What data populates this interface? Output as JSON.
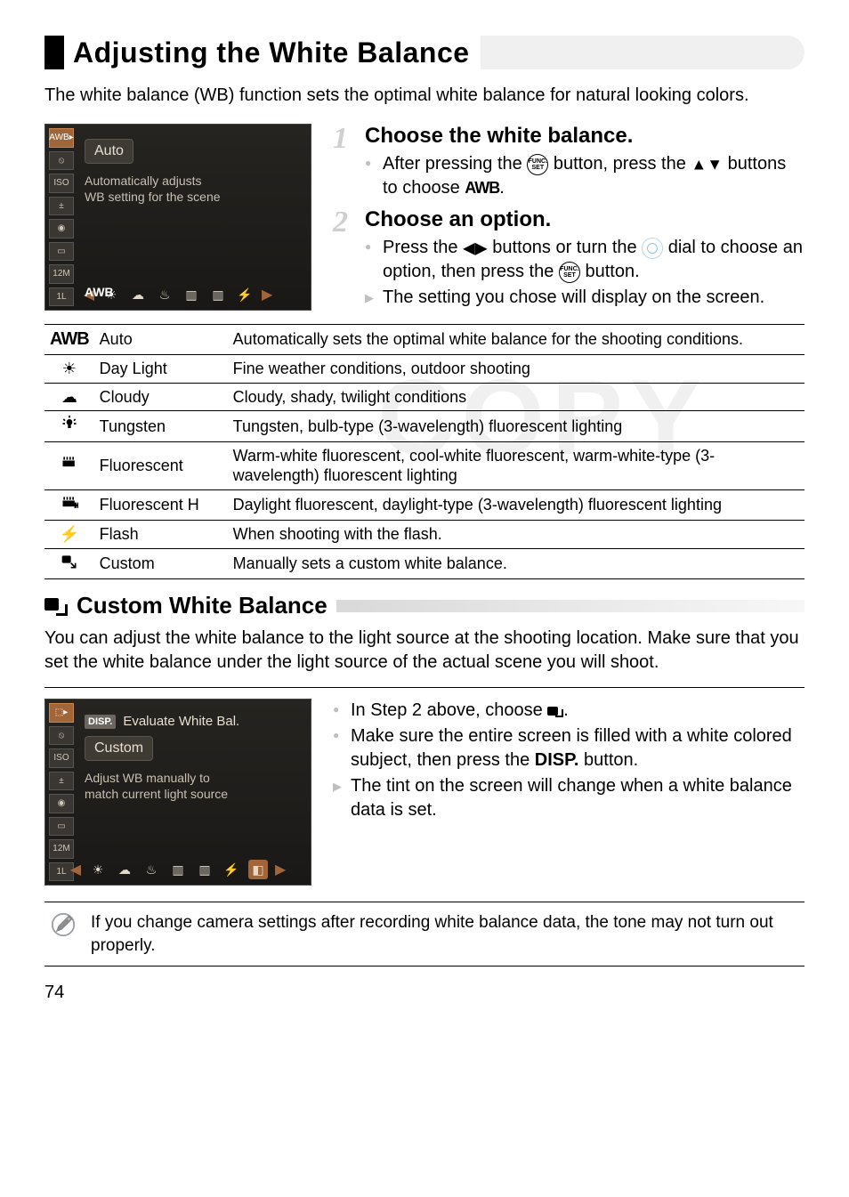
{
  "page_number": "74",
  "h1": "Adjusting the White Balance",
  "intro": "The white balance (WB) function sets the optimal white balance for natural looking colors.",
  "watermark": "COPY",
  "lcd1": {
    "top_label": "AWB",
    "pill": "Auto",
    "desc_line1": "Automatically adjusts",
    "desc_line2": "WB setting for the scene",
    "bottom_awb": "AWB",
    "left_icons": [
      "AWB▸",
      "⦸",
      "ISO",
      "±",
      "◉",
      "▭",
      "12M",
      "1L"
    ]
  },
  "lcd2": {
    "disp_label": "DISP.",
    "disp_text": "Evaluate White Bal.",
    "pill": "Custom",
    "desc_line1": "Adjust WB manually to",
    "desc_line2": "match current light source",
    "left_icons": [
      "⬚▸",
      "⦸",
      "ISO",
      "±",
      "◉",
      "▭",
      "12M",
      "1L"
    ]
  },
  "steps": [
    {
      "num": "1",
      "title": "Choose the white balance.",
      "items": [
        {
          "type": "dot",
          "html": "After pressing the {FUNC} button, press the {UD} buttons to choose {AWB}."
        }
      ]
    },
    {
      "num": "2",
      "title": "Choose an option.",
      "items": [
        {
          "type": "dot",
          "html": "Press the {LR} buttons or turn the {DIAL} dial to choose an option, then press the {FUNC} button."
        },
        {
          "type": "arrow",
          "html": "The setting you chose will display on the screen."
        }
      ]
    }
  ],
  "table": [
    {
      "icon": "AWB",
      "icon_kind": "awb",
      "name": "Auto",
      "desc": "Automatically sets the optimal white balance for the shooting conditions."
    },
    {
      "icon": "☀",
      "icon_kind": "glyph",
      "name": "Day Light",
      "desc": "Fine weather conditions, outdoor shooting"
    },
    {
      "icon": "☁",
      "icon_kind": "glyph",
      "name": "Cloudy",
      "desc": "Cloudy, shady, twilight conditions"
    },
    {
      "icon": "tungsten",
      "icon_kind": "svg",
      "name": "Tungsten",
      "desc": "Tungsten, bulb-type (3-wavelength) fluorescent lighting"
    },
    {
      "icon": "fluor",
      "icon_kind": "svg",
      "name": "Fluorescent",
      "desc": "Warm-white fluorescent, cool-white fluorescent, warm-white-type (3-wavelength) fluorescent lighting"
    },
    {
      "icon": "fluorh",
      "icon_kind": "svg",
      "name": "Fluorescent H",
      "desc": "Daylight fluorescent, daylight-type (3-wavelength) fluorescent lighting"
    },
    {
      "icon": "⚡",
      "icon_kind": "glyph",
      "name": "Flash",
      "desc": "When shooting with the flash."
    },
    {
      "icon": "custom",
      "icon_kind": "svg",
      "name": "Custom",
      "desc": "Manually sets a custom white balance."
    }
  ],
  "h2": "Custom White Balance",
  "para2": "You can adjust the white balance to the light source at the shooting location. Make sure that you set the white balance under the light source of the actual scene you will shoot.",
  "steps2": [
    {
      "type": "dot",
      "html": "In Step 2 above, choose {CUSTOM}."
    },
    {
      "type": "dot",
      "html": "Make sure the entire screen is filled with a white colored subject, then press the {DISP} button."
    },
    {
      "type": "arrow",
      "html": "The tint on the screen will change when a white balance data is set."
    }
  ],
  "note": "If you change camera settings after recording white balance data, the tone may not turn out properly.",
  "colors": {
    "stepnum": "#d0cfcf",
    "bullet_grey": "#bfbfbf",
    "lcd_bg_top": "#262421",
    "lcd_bg_bot": "#1a1816",
    "lcd_orange": "#a0663a"
  },
  "svg_icons": {
    "tungsten": "<svg viewBox='0 0 24 24' width='20' height='20'><g fill='#000'><circle cx='12' cy='10' r='4'/><rect x='10' y='13' width='4' height='5'/><path d='M12 1v3M4 6l2 2M20 6l-2 2M3 12h3M18 12h3' stroke='#000' stroke-width='2'/></g></svg>",
    "fluor": "<svg viewBox='0 0 24 24' width='20' height='20'><g stroke='#000' stroke-width='2' fill='none'><path d='M5 4v4M9 4v4M13 4v4M17 4v4'/><rect x='4' y='10' width='14' height='6' fill='#000'/></g></svg>",
    "fluorh": "<svg viewBox='0 0 24 24' width='20' height='20'><g stroke='#000' stroke-width='2' fill='none'><path d='M5 4v4M9 4v4M13 4v4M17 4v4'/><rect x='4' y='10' width='14' height='6' fill='#000'/><text x='19' y='18' font-size='8' fill='#000' font-family='Arial'>H</text></g></svg>",
    "custom": "<svg viewBox='0 0 24 24' width='20' height='20'><rect x='2' y='4' width='12' height='10' rx='2' fill='#000'/><path d='M14 14 L20 20 M20 14 v6 h-6' stroke='#000' stroke-width='2' fill='none'/></svg>",
    "pencil": "<svg viewBox='0 0 32 32'><g fill='none' stroke='#9aa0a6' stroke-width='2'><ellipse cx='16' cy='16' rx='13' ry='13'/><path d='M10 22 L22 10 M9 23 l2-5 12-12 3 3-12 12z' stroke='#888' fill='#ccc'/></g></svg>"
  }
}
